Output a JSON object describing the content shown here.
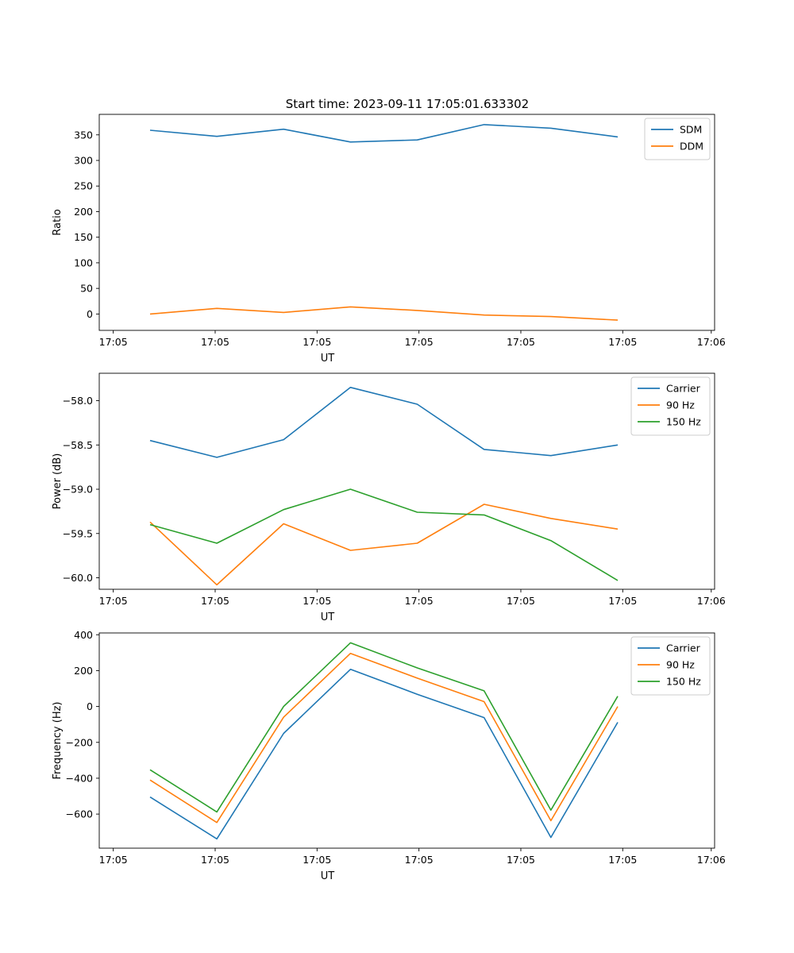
{
  "figure": {
    "title": "Start time: 2023-09-11 17:05:01.633302"
  },
  "colors": {
    "blue": "#1f77b4",
    "orange": "#ff7f0e",
    "green": "#2ca02c"
  },
  "chart_data": [
    {
      "type": "line",
      "title": "Start time: 2023-09-11 17:05:01.633302",
      "xlabel": "UT",
      "ylabel": "Ratio",
      "x_index": [
        1,
        2,
        3,
        4,
        5,
        6,
        7,
        8
      ],
      "xlim": [
        0.24,
        9.45
      ],
      "xtick_labels": [
        "17:05",
        "17:05",
        "17:05",
        "17:05",
        "17:05",
        "17:05",
        "17:06"
      ],
      "ylim": [
        -32,
        390
      ],
      "yticks": [
        0,
        50,
        100,
        150,
        200,
        250,
        300,
        350
      ],
      "legend": "top-right",
      "series": [
        {
          "name": "SDM",
          "color": "#1f77b4",
          "values": [
            359,
            347,
            361,
            336,
            340,
            370,
            363,
            346
          ]
        },
        {
          "name": "DDM",
          "color": "#ff7f0e",
          "values": [
            0,
            11,
            3,
            14,
            7,
            -2,
            -5,
            -12
          ]
        }
      ]
    },
    {
      "type": "line",
      "xlabel": "UT",
      "ylabel": "Power (dB)",
      "x_index": [
        1,
        2,
        3,
        4,
        5,
        6,
        7,
        8
      ],
      "xlim": [
        0.24,
        9.45
      ],
      "xtick_labels": [
        "17:05",
        "17:05",
        "17:05",
        "17:05",
        "17:05",
        "17:05",
        "17:06"
      ],
      "ylim": [
        -60.13,
        -57.69
      ],
      "yticks": [
        -60.0,
        -59.5,
        -59.0,
        -58.5,
        -58.0
      ],
      "ytick_labels": [
        "−60.0",
        "−59.5",
        "−59.0",
        "−58.5",
        "−58.0"
      ],
      "legend": "top-right",
      "series": [
        {
          "name": "Carrier",
          "color": "#1f77b4",
          "values": [
            -58.45,
            -58.64,
            -58.44,
            -57.85,
            -58.04,
            -58.55,
            -58.62,
            -58.5
          ]
        },
        {
          "name": "90 Hz",
          "color": "#ff7f0e",
          "values": [
            -59.37,
            -60.08,
            -59.39,
            -59.69,
            -59.61,
            -59.17,
            -59.33,
            -59.45
          ]
        },
        {
          "name": "150 Hz",
          "color": "#2ca02c",
          "values": [
            -59.4,
            -59.61,
            -59.23,
            -59.0,
            -59.26,
            -59.29,
            -59.58,
            -60.03
          ]
        }
      ]
    },
    {
      "type": "line",
      "xlabel": "UT",
      "ylabel": "Frequency (Hz)",
      "x_index": [
        1,
        2,
        3,
        4,
        5,
        6,
        7,
        8
      ],
      "xlim": [
        0.24,
        9.45
      ],
      "xtick_labels": [
        "17:05",
        "17:05",
        "17:05",
        "17:05",
        "17:05",
        "17:05",
        "17:06"
      ],
      "ylim": [
        -790,
        410
      ],
      "yticks": [
        -600,
        -400,
        -200,
        0,
        200,
        400
      ],
      "ytick_labels": [
        "−600",
        "−400",
        "−200",
        "0",
        "200",
        "400"
      ],
      "legend": "top-right",
      "series": [
        {
          "name": "Carrier",
          "color": "#1f77b4",
          "values": [
            -505,
            -738,
            -150,
            207,
            68,
            -62,
            -730,
            -88
          ]
        },
        {
          "name": "90 Hz",
          "color": "#ff7f0e",
          "values": [
            -410,
            -647,
            -60,
            296,
            158,
            27,
            -637,
            0
          ]
        },
        {
          "name": "150 Hz",
          "color": "#2ca02c",
          "values": [
            -353,
            -588,
            0,
            355,
            215,
            87,
            -578,
            57
          ]
        }
      ]
    }
  ]
}
